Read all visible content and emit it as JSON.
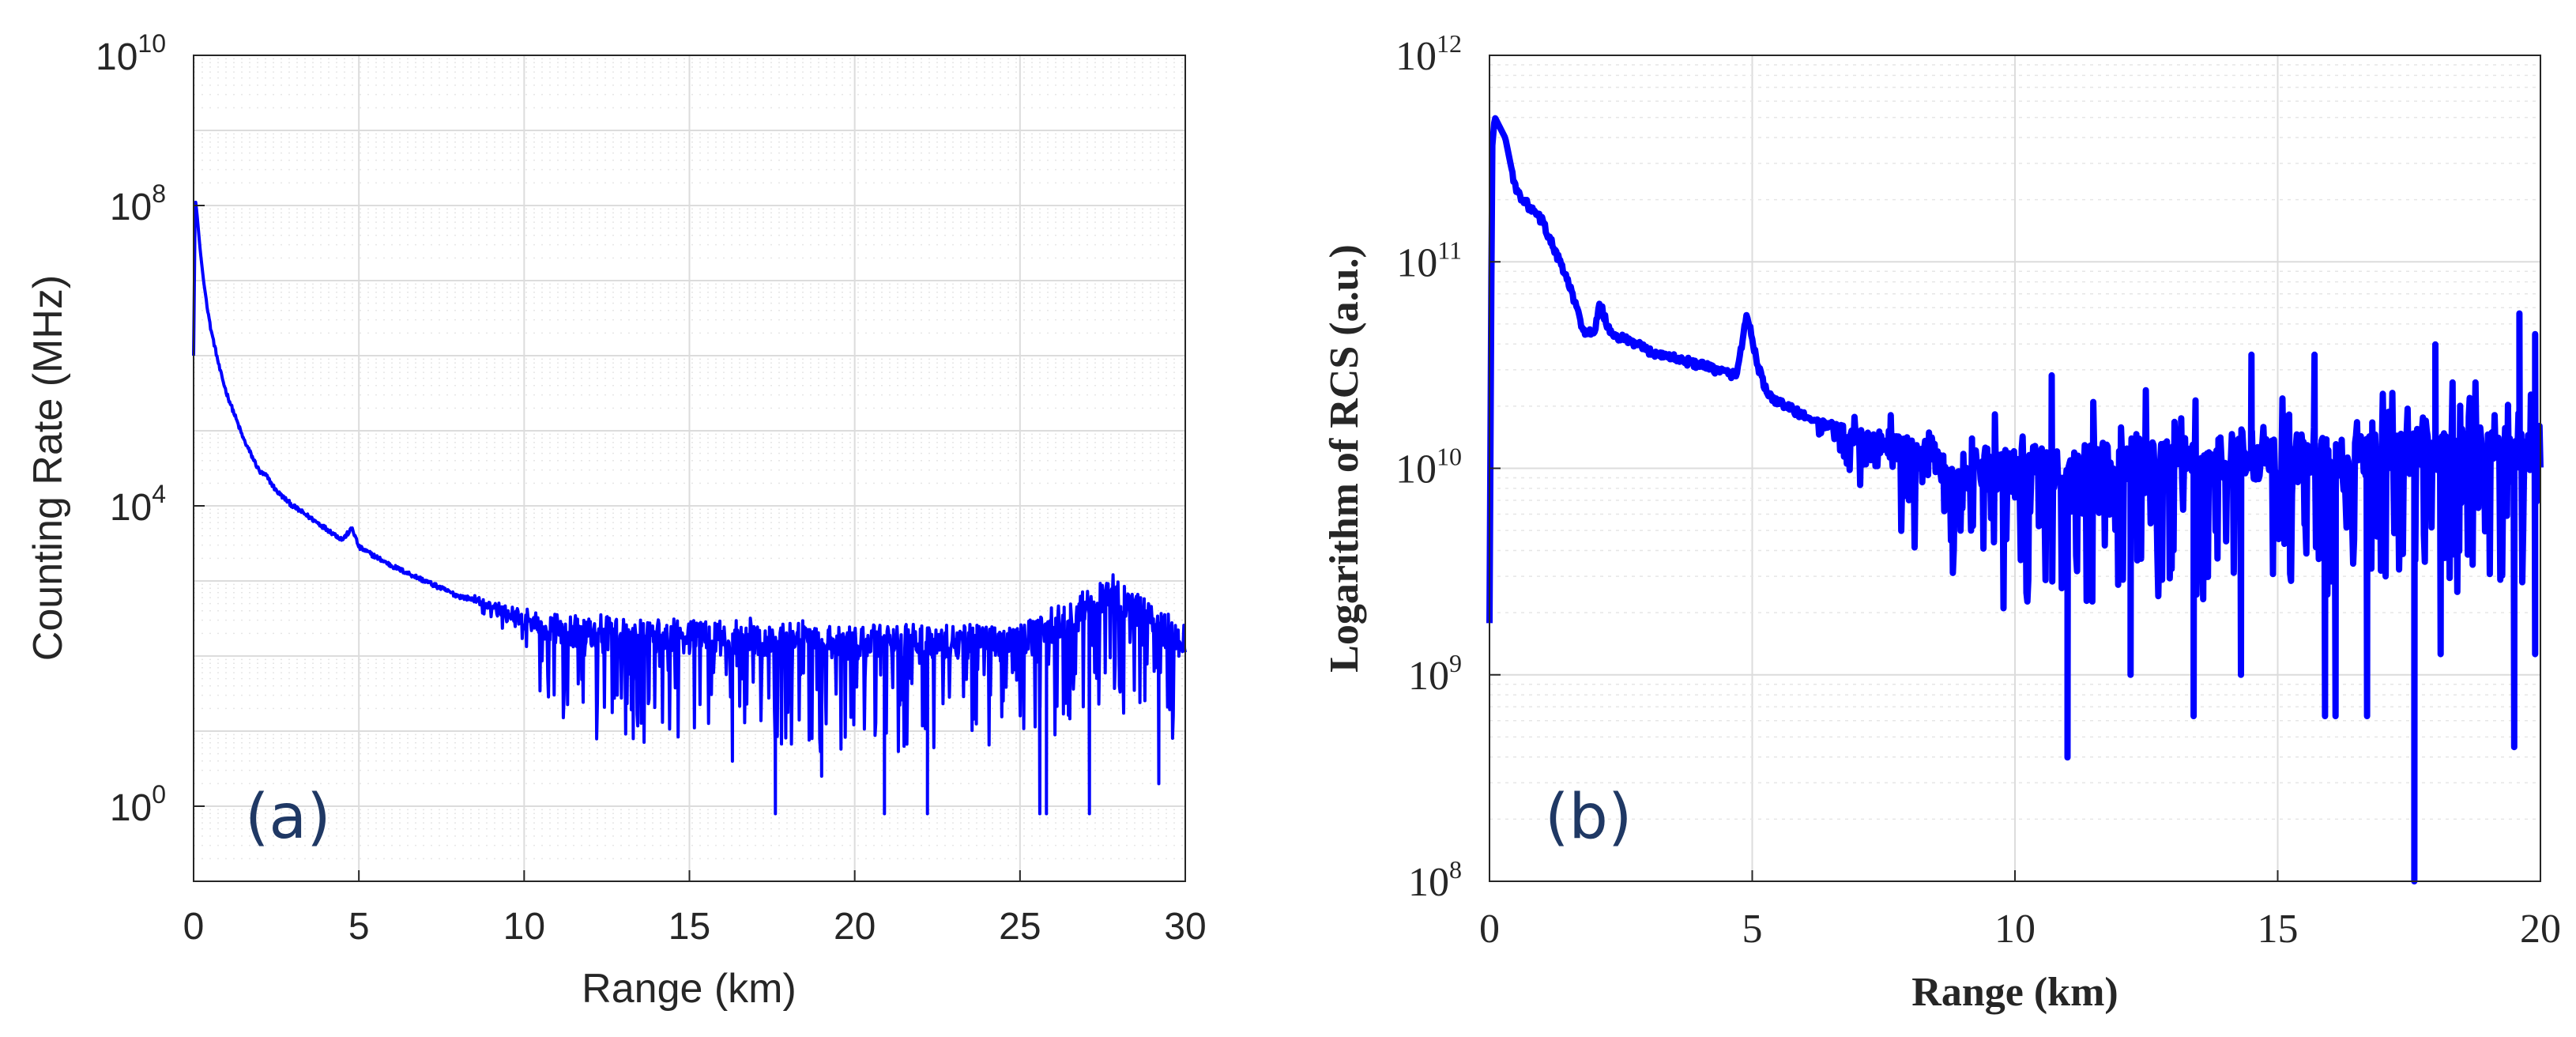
{
  "chart_data": [
    {
      "panel": "a",
      "type": "line",
      "tag": "(a)",
      "title": "",
      "xlabel": "Range (km)",
      "ylabel": "Counting Rate (MHz)",
      "xlim": [
        0,
        30
      ],
      "ylim_log10": [
        -1,
        10
      ],
      "yscale": "log",
      "grid": true,
      "xticks": [
        0,
        5,
        10,
        15,
        20,
        25,
        30
      ],
      "yticks": [
        {
          "exp": 0,
          "base": "10",
          "power": "0"
        },
        {
          "exp": 4,
          "base": "10",
          "power": "4"
        },
        {
          "exp": 8,
          "base": "10",
          "power": "8"
        },
        {
          "exp": 10,
          "base": "10",
          "power": "10"
        }
      ],
      "series": [
        {
          "name": "Counting Rate",
          "color": "#0000ff",
          "envelope_log10": [
            [
              0.0,
              6.0
            ],
            [
              0.05,
              8.1
            ],
            [
              0.1,
              7.9
            ],
            [
              0.2,
              7.4
            ],
            [
              0.3,
              7.0
            ],
            [
              0.5,
              6.4
            ],
            [
              0.8,
              5.8
            ],
            [
              1.0,
              5.5
            ],
            [
              1.5,
              4.9
            ],
            [
              2.0,
              4.45
            ],
            [
              2.2,
              4.4
            ],
            [
              2.5,
              4.2
            ],
            [
              3.0,
              4.0
            ],
            [
              3.5,
              3.85
            ],
            [
              4.0,
              3.7
            ],
            [
              4.5,
              3.55
            ],
            [
              4.8,
              3.7
            ],
            [
              5.0,
              3.45
            ],
            [
              6.0,
              3.2
            ],
            [
              7.0,
              3.0
            ],
            [
              8.0,
              2.8
            ],
            [
              9.0,
              2.7
            ],
            [
              10.0,
              2.6
            ],
            [
              12.0,
              2.5
            ],
            [
              15.0,
              2.5
            ],
            [
              20.0,
              2.4
            ],
            [
              25.0,
              2.4
            ],
            [
              27.8,
              3.05
            ],
            [
              30.0,
              2.4
            ]
          ],
          "noise_start_km": 8.5,
          "deep_dips": [
            {
              "x": 17.6,
              "y_log10": -0.1
            },
            {
              "x": 20.9,
              "y_log10": -0.1
            },
            {
              "x": 22.2,
              "y_log10": -0.1
            },
            {
              "x": 25.6,
              "y_log10": -0.1
            },
            {
              "x": 25.8,
              "y_log10": -0.1
            },
            {
              "x": 27.1,
              "y_log10": -0.1
            },
            {
              "x": 19.0,
              "y_log10": 0.4
            },
            {
              "x": 16.3,
              "y_log10": 0.6
            },
            {
              "x": 13.3,
              "y_log10": 0.9
            },
            {
              "x": 29.2,
              "y_log10": 0.3
            }
          ]
        }
      ]
    },
    {
      "panel": "b",
      "type": "line",
      "tag": "(b)",
      "title": "",
      "xlabel": "Range (km)",
      "ylabel": "Logarithm of RCS (a.u.)",
      "xlim": [
        0,
        20
      ],
      "ylim_log10": [
        8,
        12
      ],
      "yscale": "log",
      "grid": true,
      "minor_grid": true,
      "xticks": [
        0,
        5,
        10,
        15,
        20
      ],
      "yticks": [
        {
          "exp": 8,
          "base": "10",
          "power": "8"
        },
        {
          "exp": 9,
          "base": "10",
          "power": "9"
        },
        {
          "exp": 10,
          "base": "10",
          "power": "10"
        },
        {
          "exp": 11,
          "base": "10",
          "power": "11"
        },
        {
          "exp": 12,
          "base": "10",
          "power": "12"
        }
      ],
      "series": [
        {
          "name": "RCS",
          "color": "#0000ff",
          "envelope_log10": [
            [
              0.0,
              9.25
            ],
            [
              0.05,
              11.55
            ],
            [
              0.1,
              11.7
            ],
            [
              0.2,
              11.65
            ],
            [
              0.3,
              11.6
            ],
            [
              0.5,
              11.35
            ],
            [
              0.8,
              11.25
            ],
            [
              1.0,
              11.2
            ],
            [
              1.5,
              10.9
            ],
            [
              1.8,
              10.66
            ],
            [
              2.0,
              10.65
            ],
            [
              2.1,
              10.8
            ],
            [
              2.3,
              10.65
            ],
            [
              2.8,
              10.6
            ],
            [
              3.0,
              10.57
            ],
            [
              4.0,
              10.5
            ],
            [
              4.7,
              10.45
            ],
            [
              4.9,
              10.75
            ],
            [
              5.1,
              10.5
            ],
            [
              5.3,
              10.35
            ],
            [
              6.0,
              10.25
            ],
            [
              7.0,
              10.2
            ],
            [
              8.0,
              10.15
            ],
            [
              9.0,
              10.1
            ],
            [
              10.0,
              10.1
            ],
            [
              11.0,
              10.1
            ],
            [
              12.0,
              10.15
            ],
            [
              14.0,
              10.15
            ],
            [
              16.0,
              10.15
            ],
            [
              18.0,
              10.2
            ],
            [
              20.0,
              10.2
            ]
          ],
          "noise_start_km": 6.0,
          "deep_dips": [
            {
              "x": 17.6,
              "y_log10": 7.9
            },
            {
              "x": 11.0,
              "y_log10": 8.6
            },
            {
              "x": 13.4,
              "y_log10": 8.8
            },
            {
              "x": 15.9,
              "y_log10": 8.8
            },
            {
              "x": 16.1,
              "y_log10": 8.8
            },
            {
              "x": 12.2,
              "y_log10": 9.0
            },
            {
              "x": 14.3,
              "y_log10": 9.0
            },
            {
              "x": 16.7,
              "y_log10": 8.8
            },
            {
              "x": 19.5,
              "y_log10": 8.65
            },
            {
              "x": 19.9,
              "y_log10": 9.1
            },
            {
              "x": 18.1,
              "y_log10": 9.1
            }
          ],
          "spikes": [
            {
              "x": 10.7,
              "y_log10": 10.45
            },
            {
              "x": 14.5,
              "y_log10": 10.55
            },
            {
              "x": 15.7,
              "y_log10": 10.55
            },
            {
              "x": 18.0,
              "y_log10": 10.6
            },
            {
              "x": 19.6,
              "y_log10": 10.75
            },
            {
              "x": 19.9,
              "y_log10": 10.65
            }
          ]
        }
      ]
    }
  ]
}
